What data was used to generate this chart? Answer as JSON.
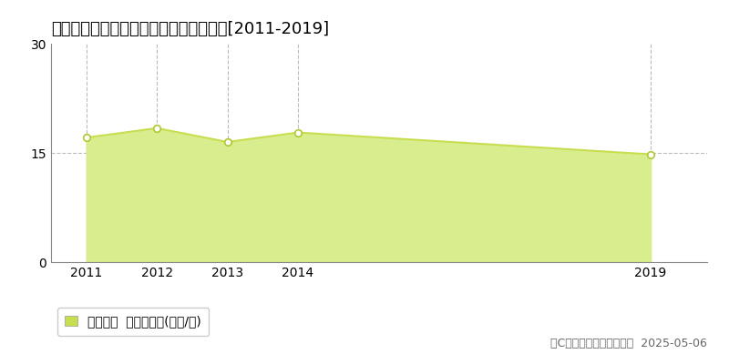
{
  "title": "綾歌郡宇多津町浜九番丁　土地価格推移[2011-2019]",
  "years": [
    2011,
    2012,
    2013,
    2014,
    2019
  ],
  "values": [
    17.1,
    18.4,
    16.5,
    17.8,
    14.8
  ],
  "ylim": [
    0,
    30
  ],
  "yticks": [
    0,
    15,
    30
  ],
  "line_color": "#c8de50",
  "fill_color": "#d8ed8e",
  "marker_facecolor": "#ffffff",
  "marker_edgecolor": "#b0c830",
  "background_color": "#ffffff",
  "grid_color": "#bbbbbb",
  "legend_label": "土地価格  平均坪単価(万円/坪)",
  "legend_marker_color": "#c8de50",
  "copyright_text": "（C）土地価格ドットコム  2025-05-06",
  "title_fontsize": 13,
  "axis_fontsize": 10,
  "legend_fontsize": 10,
  "copyright_fontsize": 9,
  "xlim_left": 2010.5,
  "xlim_right": 2019.8
}
